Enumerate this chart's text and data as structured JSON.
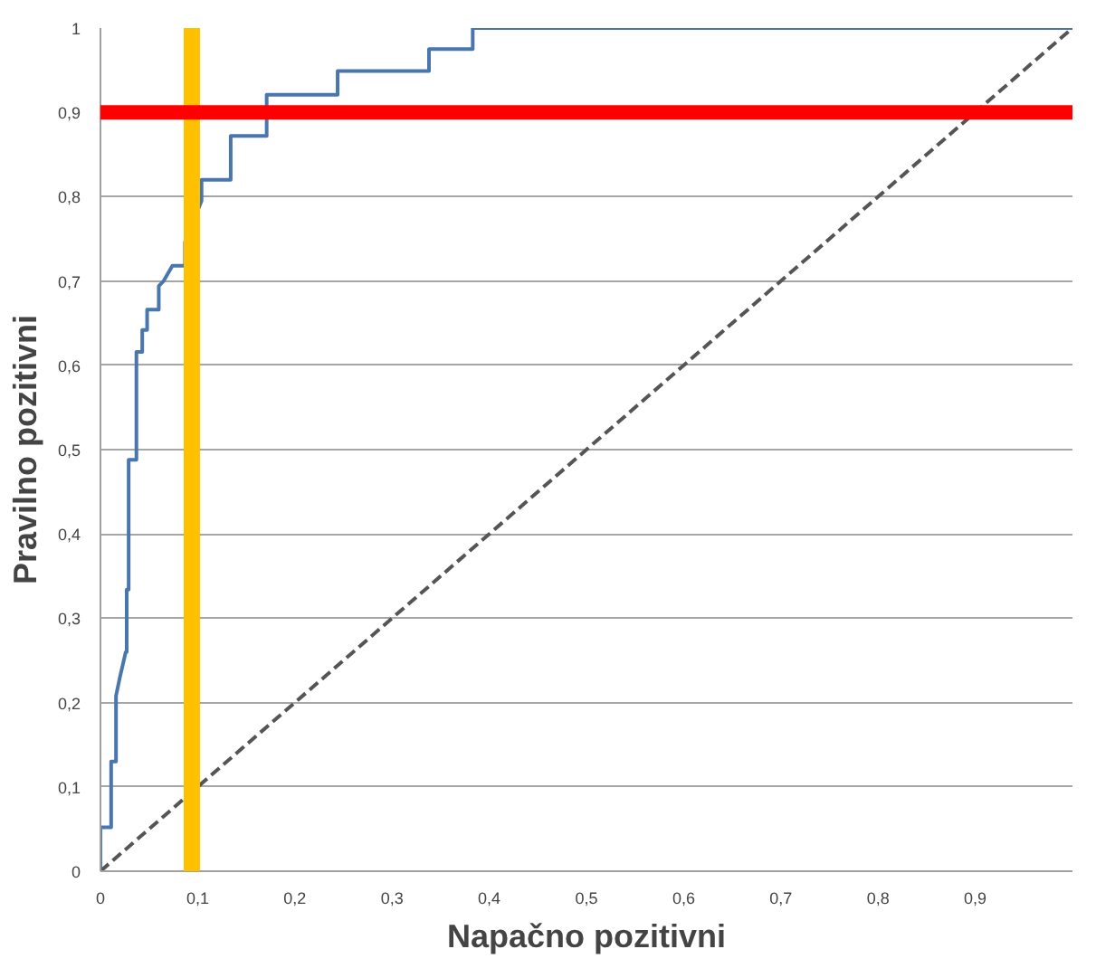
{
  "chart_data": {
    "type": "line",
    "xlabel": "Napačno pozitivni",
    "ylabel": "Pravilno pozitivni",
    "xlim": [
      0,
      1
    ],
    "ylim": [
      0,
      1
    ],
    "xticks": [
      0,
      {
        "value": 0.1,
        "label": "0,1"
      },
      {
        "value": 0.2,
        "label": "0,2"
      },
      {
        "value": 0.3,
        "label": "0,3"
      },
      {
        "value": 0.4,
        "label": "0,4"
      },
      {
        "value": 0.5,
        "label": "0,5"
      },
      {
        "value": 0.6,
        "label": "0,6"
      },
      {
        "value": 0.7,
        "label": "0,7"
      },
      {
        "value": 0.8,
        "label": "0,8"
      },
      {
        "value": 0.9,
        "label": "0,9"
      }
    ],
    "yticks": [
      0,
      {
        "value": 0.1,
        "label": "0,1"
      },
      {
        "value": 0.2,
        "label": "0,2"
      },
      {
        "value": 0.3,
        "label": "0,3"
      },
      {
        "value": 0.4,
        "label": "0,4"
      },
      {
        "value": 0.5,
        "label": "0,5"
      },
      {
        "value": 0.6,
        "label": "0,6"
      },
      {
        "value": 0.7,
        "label": "0,7"
      },
      {
        "value": 0.8,
        "label": "0,8"
      },
      {
        "value": 0.9,
        "label": "0,9"
      },
      1
    ],
    "grid": "y",
    "series": [
      {
        "color": "#4a76ae",
        "line_style": "solid",
        "x": [
          0,
          0,
          0.011,
          0.011,
          0.016,
          0.016,
          0.02,
          0.026,
          0.027,
          0.027,
          0.029,
          0.029,
          0.037,
          0.037,
          0.043,
          0.043,
          0.048,
          0.048,
          0.06,
          0.06,
          0.065,
          0.074,
          0.087,
          0.087,
          0.104,
          0.104,
          0.134,
          0.134,
          0.171,
          0.171,
          0.244,
          0.244,
          0.338,
          0.338,
          0.383,
          0.383,
          1
        ],
        "values": [
          0,
          0.052,
          0.052,
          0.13,
          0.13,
          0.208,
          0.23,
          0.26,
          0.26,
          0.334,
          0.334,
          0.488,
          0.488,
          0.616,
          0.616,
          0.642,
          0.642,
          0.666,
          0.666,
          0.694,
          0.7,
          0.718,
          0.718,
          0.746,
          0.795,
          0.82,
          0.82,
          0.872,
          0.872,
          0.921,
          0.921,
          0.949,
          0.949,
          0.975,
          0.975,
          1,
          1
        ]
      },
      {
        "color": "#555555",
        "line_style": "dashed",
        "x": [
          0,
          1
        ],
        "values": [
          0,
          1
        ]
      }
    ],
    "ref_lines": [
      {
        "axis": "x",
        "value": 0.094,
        "color": "#ffc000"
      },
      {
        "axis": "y",
        "value": 0.9,
        "color": "#ff0000"
      }
    ]
  }
}
